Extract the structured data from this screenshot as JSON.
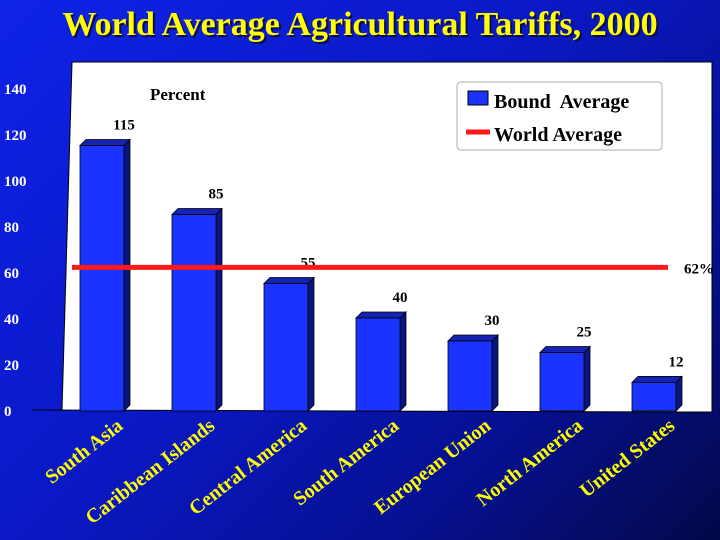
{
  "chart_data": {
    "type": "bar",
    "title": "World Average Agricultural Tariffs, 2000",
    "ylabel": "Percent",
    "ylim": [
      0,
      140
    ],
    "yticks": [
      0,
      20,
      40,
      60,
      80,
      100,
      120,
      140
    ],
    "categories": [
      "South Asia",
      "Caribbean Islands",
      "Central America",
      "South America",
      "European Union",
      "North America",
      "United States"
    ],
    "series": [
      {
        "name": "Bound  Average",
        "type": "bar",
        "values": [
          115,
          85,
          55,
          40,
          30,
          25,
          12
        ],
        "color": "#1a33ff"
      }
    ],
    "reference_line": {
      "name": "World Average",
      "value": 62,
      "label": "62%",
      "color": "#ff1a1a"
    },
    "data_labels": [
      "115",
      "85",
      "55",
      "40",
      "30",
      "25",
      "12"
    ],
    "legend": {
      "position": "top-right",
      "entries": [
        "Bound  Average",
        "World Average"
      ]
    },
    "grid": false
  },
  "colors": {
    "title": "#ffff00",
    "plot_background": "#ffffff",
    "bar": "#1a33ff",
    "line": "#ff1a1a"
  }
}
